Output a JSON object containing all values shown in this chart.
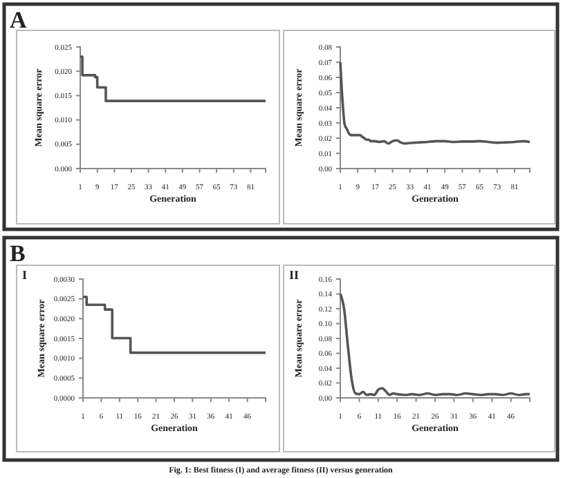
{
  "chart_data": [
    {
      "type": "step",
      "xlabel": "Generation",
      "ylabel": "Mean square error",
      "annotations": [
        "A"
      ],
      "xlim": [
        1,
        88
      ],
      "xticks": [
        1,
        9,
        17,
        25,
        33,
        41,
        49,
        57,
        65,
        73,
        81
      ],
      "ylim": [
        0,
        0.025
      ],
      "yticks": [
        {
          "value": 0,
          "label": "0.000"
        },
        {
          "value": 0.005,
          "label": "0.005"
        },
        {
          "value": 0.01,
          "label": "0.010"
        },
        {
          "value": 0.015,
          "label": "0.015"
        },
        {
          "value": 0.02,
          "label": "0.020"
        },
        {
          "value": 0.025,
          "label": "0.025"
        }
      ],
      "series": [
        {
          "color": "#555555",
          "x": [
            1,
            2,
            8,
            9,
            10,
            13,
            88
          ],
          "values": [
            0.023,
            0.0192,
            0.0188,
            0.0167,
            0.0167,
            0.0139,
            0.0139
          ]
        }
      ]
    },
    {
      "type": "line",
      "xlabel": "Generation",
      "ylabel": "Mean square error",
      "xlim": [
        1,
        88
      ],
      "xticks": [
        1,
        9,
        17,
        25,
        33,
        41,
        49,
        57,
        65,
        73,
        81
      ],
      "ylim": [
        0,
        0.08
      ],
      "yticks": [
        {
          "value": 0,
          "label": "0.00"
        },
        {
          "value": 0.01,
          "label": "0.01"
        },
        {
          "value": 0.02,
          "label": "0.02"
        },
        {
          "value": 0.03,
          "label": "0.03"
        },
        {
          "value": 0.04,
          "label": "0.04"
        },
        {
          "value": 0.05,
          "label": "0.05"
        },
        {
          "value": 0.06,
          "label": "0.06"
        },
        {
          "value": 0.07,
          "label": "0.07"
        },
        {
          "value": 0.08,
          "label": "0.08"
        }
      ],
      "series": [
        {
          "color": "#555555",
          "x": [
            1,
            2,
            3,
            4,
            5,
            6,
            7,
            8,
            9,
            10,
            11,
            12,
            13,
            14,
            15,
            17,
            19,
            21,
            23,
            25,
            27,
            29,
            31,
            33,
            35,
            37,
            41,
            45,
            49,
            53,
            57,
            61,
            65,
            69,
            73,
            77,
            81,
            85,
            88
          ],
          "values": [
            0.07,
            0.045,
            0.029,
            0.026,
            0.023,
            0.022,
            0.022,
            0.022,
            0.022,
            0.022,
            0.021,
            0.02,
            0.019,
            0.019,
            0.018,
            0.018,
            0.0175,
            0.018,
            0.0165,
            0.018,
            0.0185,
            0.017,
            0.0165,
            0.0168,
            0.017,
            0.0172,
            0.0175,
            0.018,
            0.018,
            0.0175,
            0.0178,
            0.0178,
            0.018,
            0.0175,
            0.017,
            0.0172,
            0.0175,
            0.018,
            0.0175
          ]
        }
      ]
    },
    {
      "type": "step",
      "title": "I",
      "xlabel": "Generation",
      "ylabel": "Mean square error",
      "annotations": [
        "B",
        "Fig. 1: Best fitness (I) and average fitness (II) versus generation"
      ],
      "xlim": [
        1,
        51
      ],
      "xticks": [
        1,
        6,
        11,
        16,
        21,
        26,
        31,
        36,
        41,
        46
      ],
      "ylim": [
        0,
        0.003
      ],
      "yticks": [
        {
          "value": 0,
          "label": "0.0000"
        },
        {
          "value": 0.0005,
          "label": "0.0005"
        },
        {
          "value": 0.001,
          "label": "0.0010"
        },
        {
          "value": 0.0015,
          "label": "0.0015"
        },
        {
          "value": 0.002,
          "label": "0.0020"
        },
        {
          "value": 0.0025,
          "label": "0.0025"
        },
        {
          "value": 0.003,
          "label": "0.0030"
        }
      ],
      "series": [
        {
          "color": "#555555",
          "x": [
            1,
            2,
            7,
            9,
            14,
            51
          ],
          "values": [
            0.00255,
            0.00235,
            0.00223,
            0.00151,
            0.00114,
            0.00114
          ]
        }
      ]
    },
    {
      "type": "line",
      "title": "II",
      "xlabel": "Generation",
      "ylabel": "Mean square error",
      "xlim": [
        1,
        51
      ],
      "xticks": [
        1,
        6,
        11,
        16,
        21,
        26,
        31,
        36,
        41,
        46
      ],
      "ylim": [
        0,
        0.16
      ],
      "yticks": [
        {
          "value": 0,
          "label": "0.00"
        },
        {
          "value": 0.02,
          "label": "0.02"
        },
        {
          "value": 0.04,
          "label": "0.04"
        },
        {
          "value": 0.06,
          "label": "0.06"
        },
        {
          "value": 0.08,
          "label": "0.08"
        },
        {
          "value": 0.1,
          "label": "0.10"
        },
        {
          "value": 0.12,
          "label": "0.12"
        },
        {
          "value": 0.14,
          "label": "0.14"
        },
        {
          "value": 0.16,
          "label": "0.16"
        }
      ],
      "series": [
        {
          "color": "#555555",
          "x": [
            1,
            2,
            3,
            4,
            5,
            6,
            7,
            8,
            9,
            10,
            11,
            12,
            13,
            14,
            15,
            16,
            18,
            20,
            22,
            24,
            26,
            28,
            30,
            32,
            34,
            36,
            38,
            40,
            42,
            44,
            46,
            48,
            50,
            51
          ],
          "values": [
            0.14,
            0.12,
            0.07,
            0.025,
            0.006,
            0.005,
            0.008,
            0.004,
            0.005,
            0.004,
            0.011,
            0.013,
            0.009,
            0.004,
            0.006,
            0.005,
            0.004,
            0.005,
            0.004,
            0.006,
            0.004,
            0.005,
            0.005,
            0.004,
            0.006,
            0.005,
            0.004,
            0.005,
            0.005,
            0.004,
            0.006,
            0.004,
            0.005,
            0.005
          ]
        }
      ]
    }
  ]
}
